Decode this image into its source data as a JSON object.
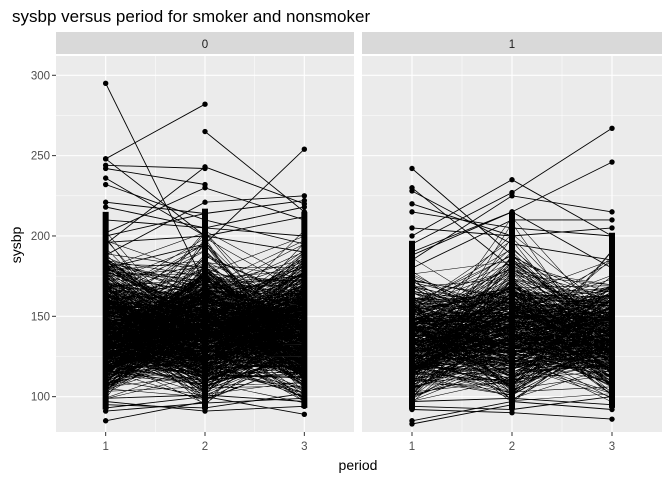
{
  "chart_data": {
    "type": "line",
    "title": "sysbp versus period for smoker and nonsmoker",
    "xlabel": "period",
    "ylabel": "sysbp",
    "facet_labels": [
      "0",
      "1"
    ],
    "x_ticks": [
      1,
      2,
      3
    ],
    "y_ticks": [
      100,
      150,
      200,
      250,
      300
    ],
    "xlim": [
      0.5,
      3.5
    ],
    "ylim": [
      78,
      312
    ],
    "grid": true,
    "colors": {
      "panel_bg": "#ebebeb",
      "strip_bg": "#d9d9d9",
      "grid_major": "#ffffff",
      "line": "#000000",
      "point": "#000000"
    },
    "panels": [
      {
        "facet": "0",
        "dense_band": {
          "1": [
            92,
            215
          ],
          "2": [
            92,
            217
          ],
          "3": [
            93,
            215
          ]
        },
        "subjects": [
          {
            "x": [
              1,
              2
            ],
            "y": [
              295,
              170
            ]
          },
          {
            "x": [
              1,
              2
            ],
            "y": [
              248,
              200
            ]
          },
          {
            "x": [
              1,
              2
            ],
            "y": [
              244,
              242
            ]
          },
          {
            "x": [
              1,
              2
            ],
            "y": [
              242,
              232
            ]
          },
          {
            "x": [
              1,
              2,
              3
            ],
            "y": [
              236,
              200,
              190
            ]
          },
          {
            "x": [
              1,
              2,
              3
            ],
            "y": [
              232,
              210,
              195
            ]
          },
          {
            "x": [
              1,
              2
            ],
            "y": [
              221,
              214
            ]
          },
          {
            "x": [
              1,
              2,
              3
            ],
            "y": [
              218,
              205,
              200
            ]
          },
          {
            "x": [
              1,
              2
            ],
            "y": [
              248,
              282
            ]
          },
          {
            "x": [
              2,
              3
            ],
            "y": [
              265,
              215
            ]
          },
          {
            "x": [
              1,
              2,
              3
            ],
            "y": [
              202,
              230,
              210
            ]
          },
          {
            "x": [
              1,
              2,
              3
            ],
            "y": [
              195,
              243,
              220
            ]
          },
          {
            "x": [
              1,
              2,
              3
            ],
            "y": [
              188,
              221,
              225
            ]
          },
          {
            "x": [
              1,
              2,
              3
            ],
            "y": [
              180,
              195,
              254
            ]
          },
          {
            "x": [
              1,
              2,
              3
            ],
            "y": [
              200,
              214,
              222
            ]
          },
          {
            "x": [
              1,
              2,
              3
            ],
            "y": [
              210,
              205,
              218
            ]
          },
          {
            "x": [
              1,
              2,
              3
            ],
            "y": [
              196,
              200,
              212
            ]
          },
          {
            "x": [
              1,
              2,
              3
            ],
            "y": [
              93,
              100,
              89
            ]
          },
          {
            "x": [
              1,
              2,
              3
            ],
            "y": [
              91,
              96,
              99
            ]
          },
          {
            "x": [
              1,
              2,
              3
            ],
            "y": [
              97,
              91,
              94
            ]
          },
          {
            "x": [
              1,
              2
            ],
            "y": [
              85,
              97
            ]
          },
          {
            "x": [
              1,
              2,
              3
            ],
            "y": [
              95,
              93,
              102
            ]
          },
          {
            "x": [
              1,
              2,
              3
            ],
            "y": [
              99,
              101,
              97
            ]
          }
        ]
      },
      {
        "facet": "1",
        "dense_band": {
          "1": [
            92,
            197
          ],
          "2": [
            92,
            215
          ],
          "3": [
            93,
            202
          ]
        },
        "subjects": [
          {
            "x": [
              1,
              2
            ],
            "y": [
              242,
              188
            ]
          },
          {
            "x": [
              1,
              2
            ],
            "y": [
              230,
              180
            ]
          },
          {
            "x": [
              1,
              2,
              3
            ],
            "y": [
              228,
              195,
              185
            ]
          },
          {
            "x": [
              1,
              2
            ],
            "y": [
              220,
              200
            ]
          },
          {
            "x": [
              1,
              2,
              3
            ],
            "y": [
              215,
              205,
              200
            ]
          },
          {
            "x": [
              1,
              2,
              3
            ],
            "y": [
              200,
              235,
              200
            ]
          },
          {
            "x": [
              1,
              2,
              3
            ],
            "y": [
              195,
              227,
              267
            ]
          },
          {
            "x": [
              1,
              2,
              3
            ],
            "y": [
              190,
              215,
              246
            ]
          },
          {
            "x": [
              1,
              2,
              3
            ],
            "y": [
              185,
              225,
              215
            ]
          },
          {
            "x": [
              1,
              2,
              3
            ],
            "y": [
              180,
              210,
              210
            ]
          },
          {
            "x": [
              1,
              2,
              3
            ],
            "y": [
              205,
              200,
              205
            ]
          },
          {
            "x": [
              1,
              2,
              3
            ],
            "y": [
              188,
              215,
              180
            ]
          },
          {
            "x": [
              1,
              2,
              3
            ],
            "y": [
              92,
              90,
              86
            ]
          },
          {
            "x": [
              1,
              2,
              3
            ],
            "y": [
              85,
              97,
              92
            ]
          },
          {
            "x": [
              1,
              2
            ],
            "y": [
              83,
              95
            ]
          },
          {
            "x": [
              1,
              2,
              3
            ],
            "y": [
              94,
              92,
              100
            ]
          },
          {
            "x": [
              1,
              2,
              3
            ],
            "y": [
              97,
              99,
              95
            ]
          }
        ]
      }
    ]
  }
}
